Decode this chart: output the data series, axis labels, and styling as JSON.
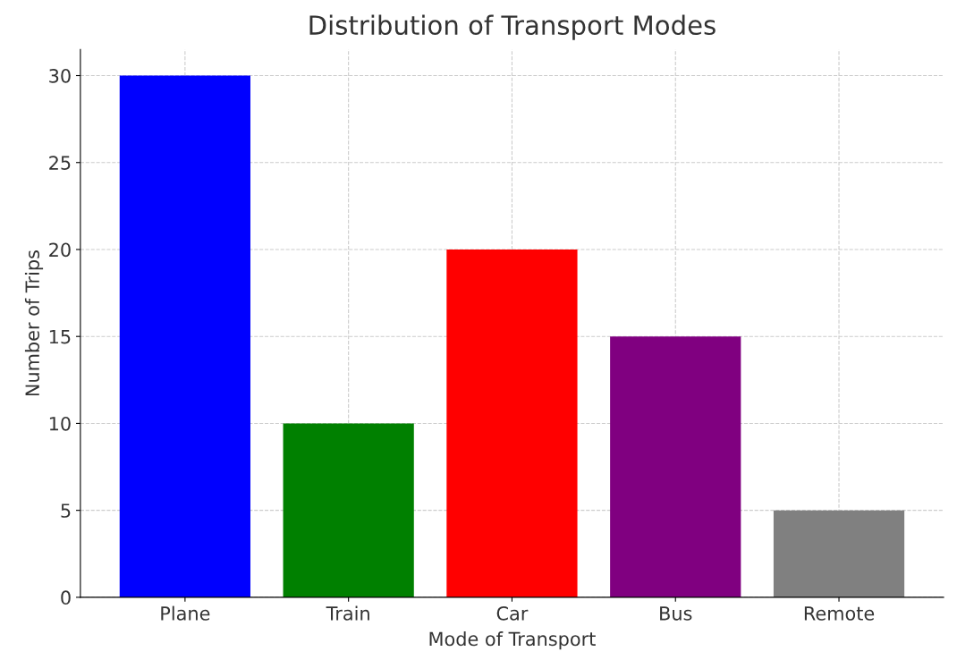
{
  "chart_data": {
    "type": "bar",
    "title": "Distribution of Transport Modes",
    "xlabel": "Mode of Transport",
    "ylabel": "Number of Trips",
    "categories": [
      "Plane",
      "Train",
      "Car",
      "Bus",
      "Remote"
    ],
    "values": [
      30,
      10,
      20,
      15,
      5
    ],
    "colors": [
      "#0000ff",
      "#008000",
      "#ff0000",
      "#800080",
      "#808080"
    ],
    "ylim": [
      0,
      31.5
    ],
    "yticks": [
      0,
      5,
      10,
      15,
      20,
      25,
      30
    ],
    "grid": true,
    "legend": false
  }
}
